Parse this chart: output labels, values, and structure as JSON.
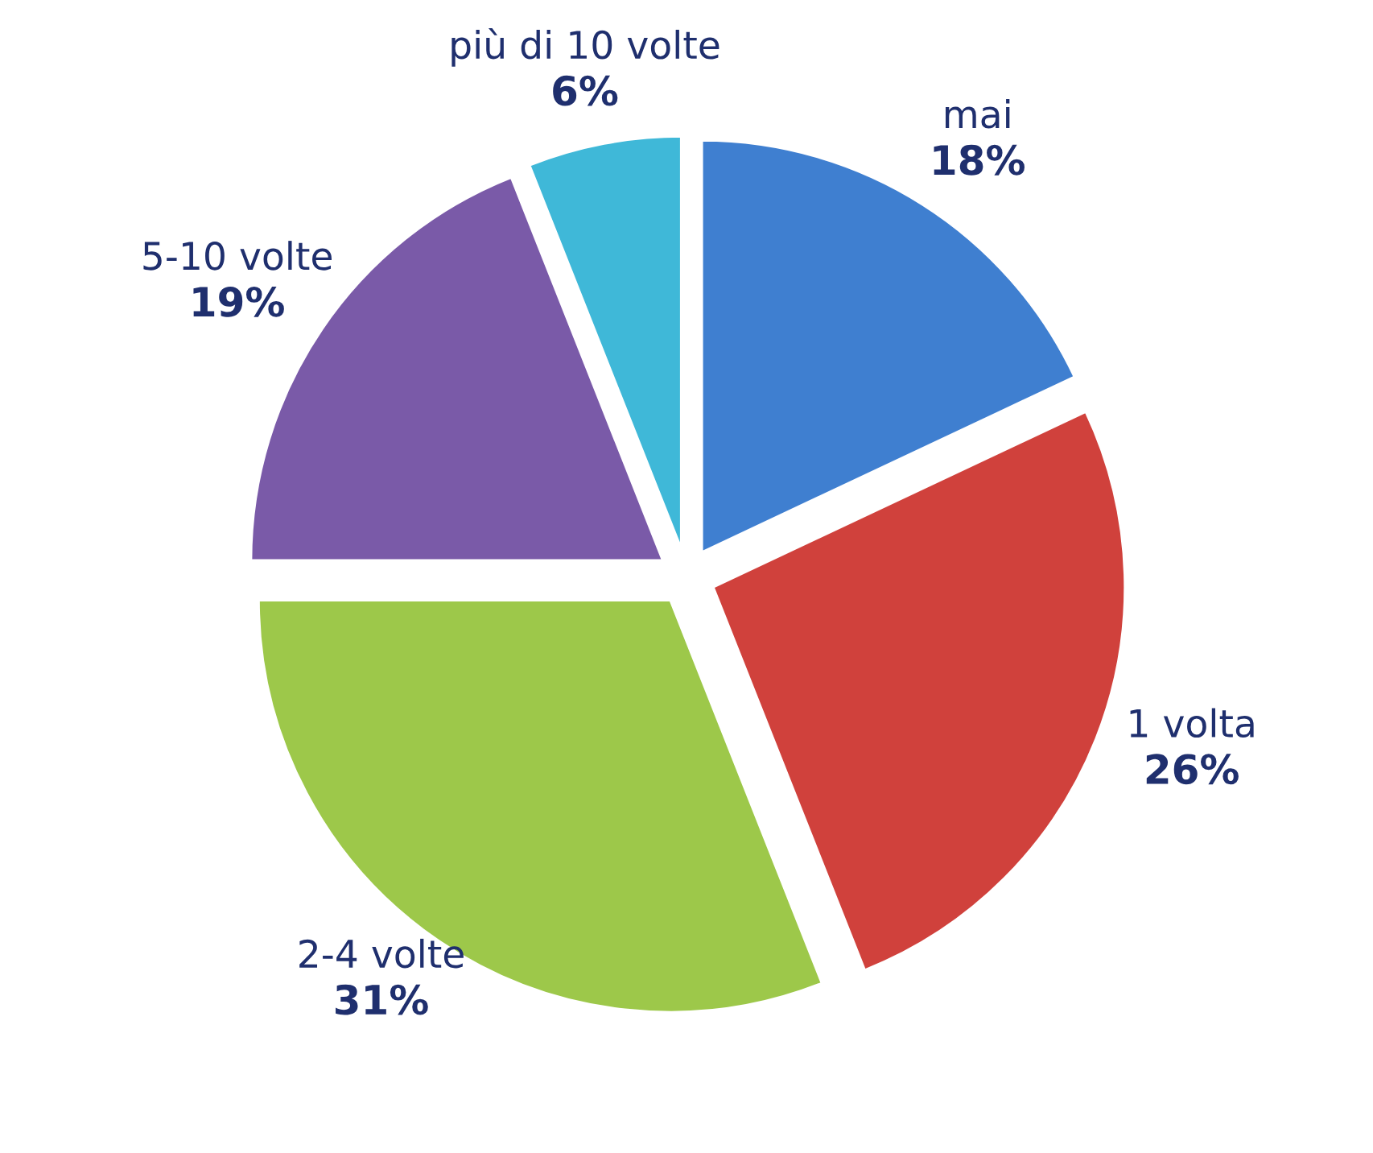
{
  "chart_data": {
    "type": "pie",
    "categories": [
      "mai",
      "1 volta",
      "2-4 volte",
      "5-10 volte",
      "più di 10 volte"
    ],
    "values": [
      18,
      26,
      31,
      19,
      6
    ],
    "value_labels": [
      "18%",
      "26%",
      "31%",
      "19%",
      "6%"
    ],
    "colors": [
      "#3f7fd0",
      "#d0413c",
      "#9dc84a",
      "#7a5aa8",
      "#3fb8d8"
    ],
    "legend": false
  }
}
